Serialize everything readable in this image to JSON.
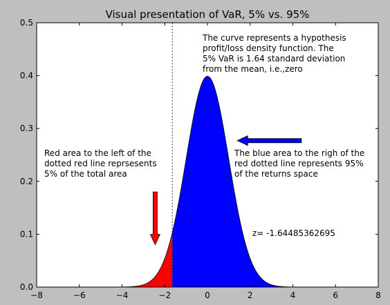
{
  "chart_data": {
    "type": "area",
    "title": "Visual presentation of VaR, 5% vs. 95%",
    "xlabel": "",
    "ylabel": "",
    "xlim": [
      -8,
      8
    ],
    "ylim": [
      0.0,
      0.5
    ],
    "x_ticks": [
      -8,
      -6,
      -4,
      -2,
      0,
      2,
      4,
      6,
      8
    ],
    "x_tick_labels": [
      "−8",
      "−6",
      "−4",
      "−2",
      "0",
      "2",
      "4",
      "6",
      "8"
    ],
    "y_ticks": [
      0.0,
      0.1,
      0.2,
      0.3,
      0.4,
      0.5
    ],
    "y_tick_labels": [
      "0.0",
      "0.1",
      "0.2",
      "0.3",
      "0.4",
      "0.5"
    ],
    "distribution": {
      "family": "standard normal",
      "mean": 0,
      "sd": 1,
      "x_range": [
        -7,
        7
      ]
    },
    "cutoff_z": -1.64485362695,
    "series": [
      {
        "region": "left tail",
        "x_range": [
          -7,
          -1.64485362695
        ],
        "color": "#ff0000"
      },
      {
        "region": "right of cutoff",
        "x_range": [
          -1.64485362695,
          7
        ],
        "color": "#0000ff"
      }
    ],
    "annotations": {
      "curve_note": [
        "The curve represents a hypothesis",
        "profit/loss density function. The",
        "5% VaR is 1.64 standard deviation",
        "from the mean, i.e.,zero"
      ],
      "red_note": [
        "Red area to the left of the",
        "dotted red line reprsesents",
        "5% of the total area"
      ],
      "blue_note": [
        "The blue area to the righ of the",
        "red dotted line represents 95%",
        "of the returns space"
      ],
      "z_label": "z= -1.64485362695"
    },
    "arrows": [
      {
        "name": "red-arrow",
        "direction": "down",
        "color": "#ff0000",
        "from": [
          -2.45,
          0.18
        ],
        "to": [
          -2.45,
          0.08
        ]
      },
      {
        "name": "blue-arrow",
        "direction": "left",
        "color": "#0000ff",
        "from": [
          4.4,
          0.277
        ],
        "to": [
          1.4,
          0.277
        ]
      }
    ],
    "cutoff_line_style": "dotted",
    "grid": false,
    "legend": "none"
  }
}
